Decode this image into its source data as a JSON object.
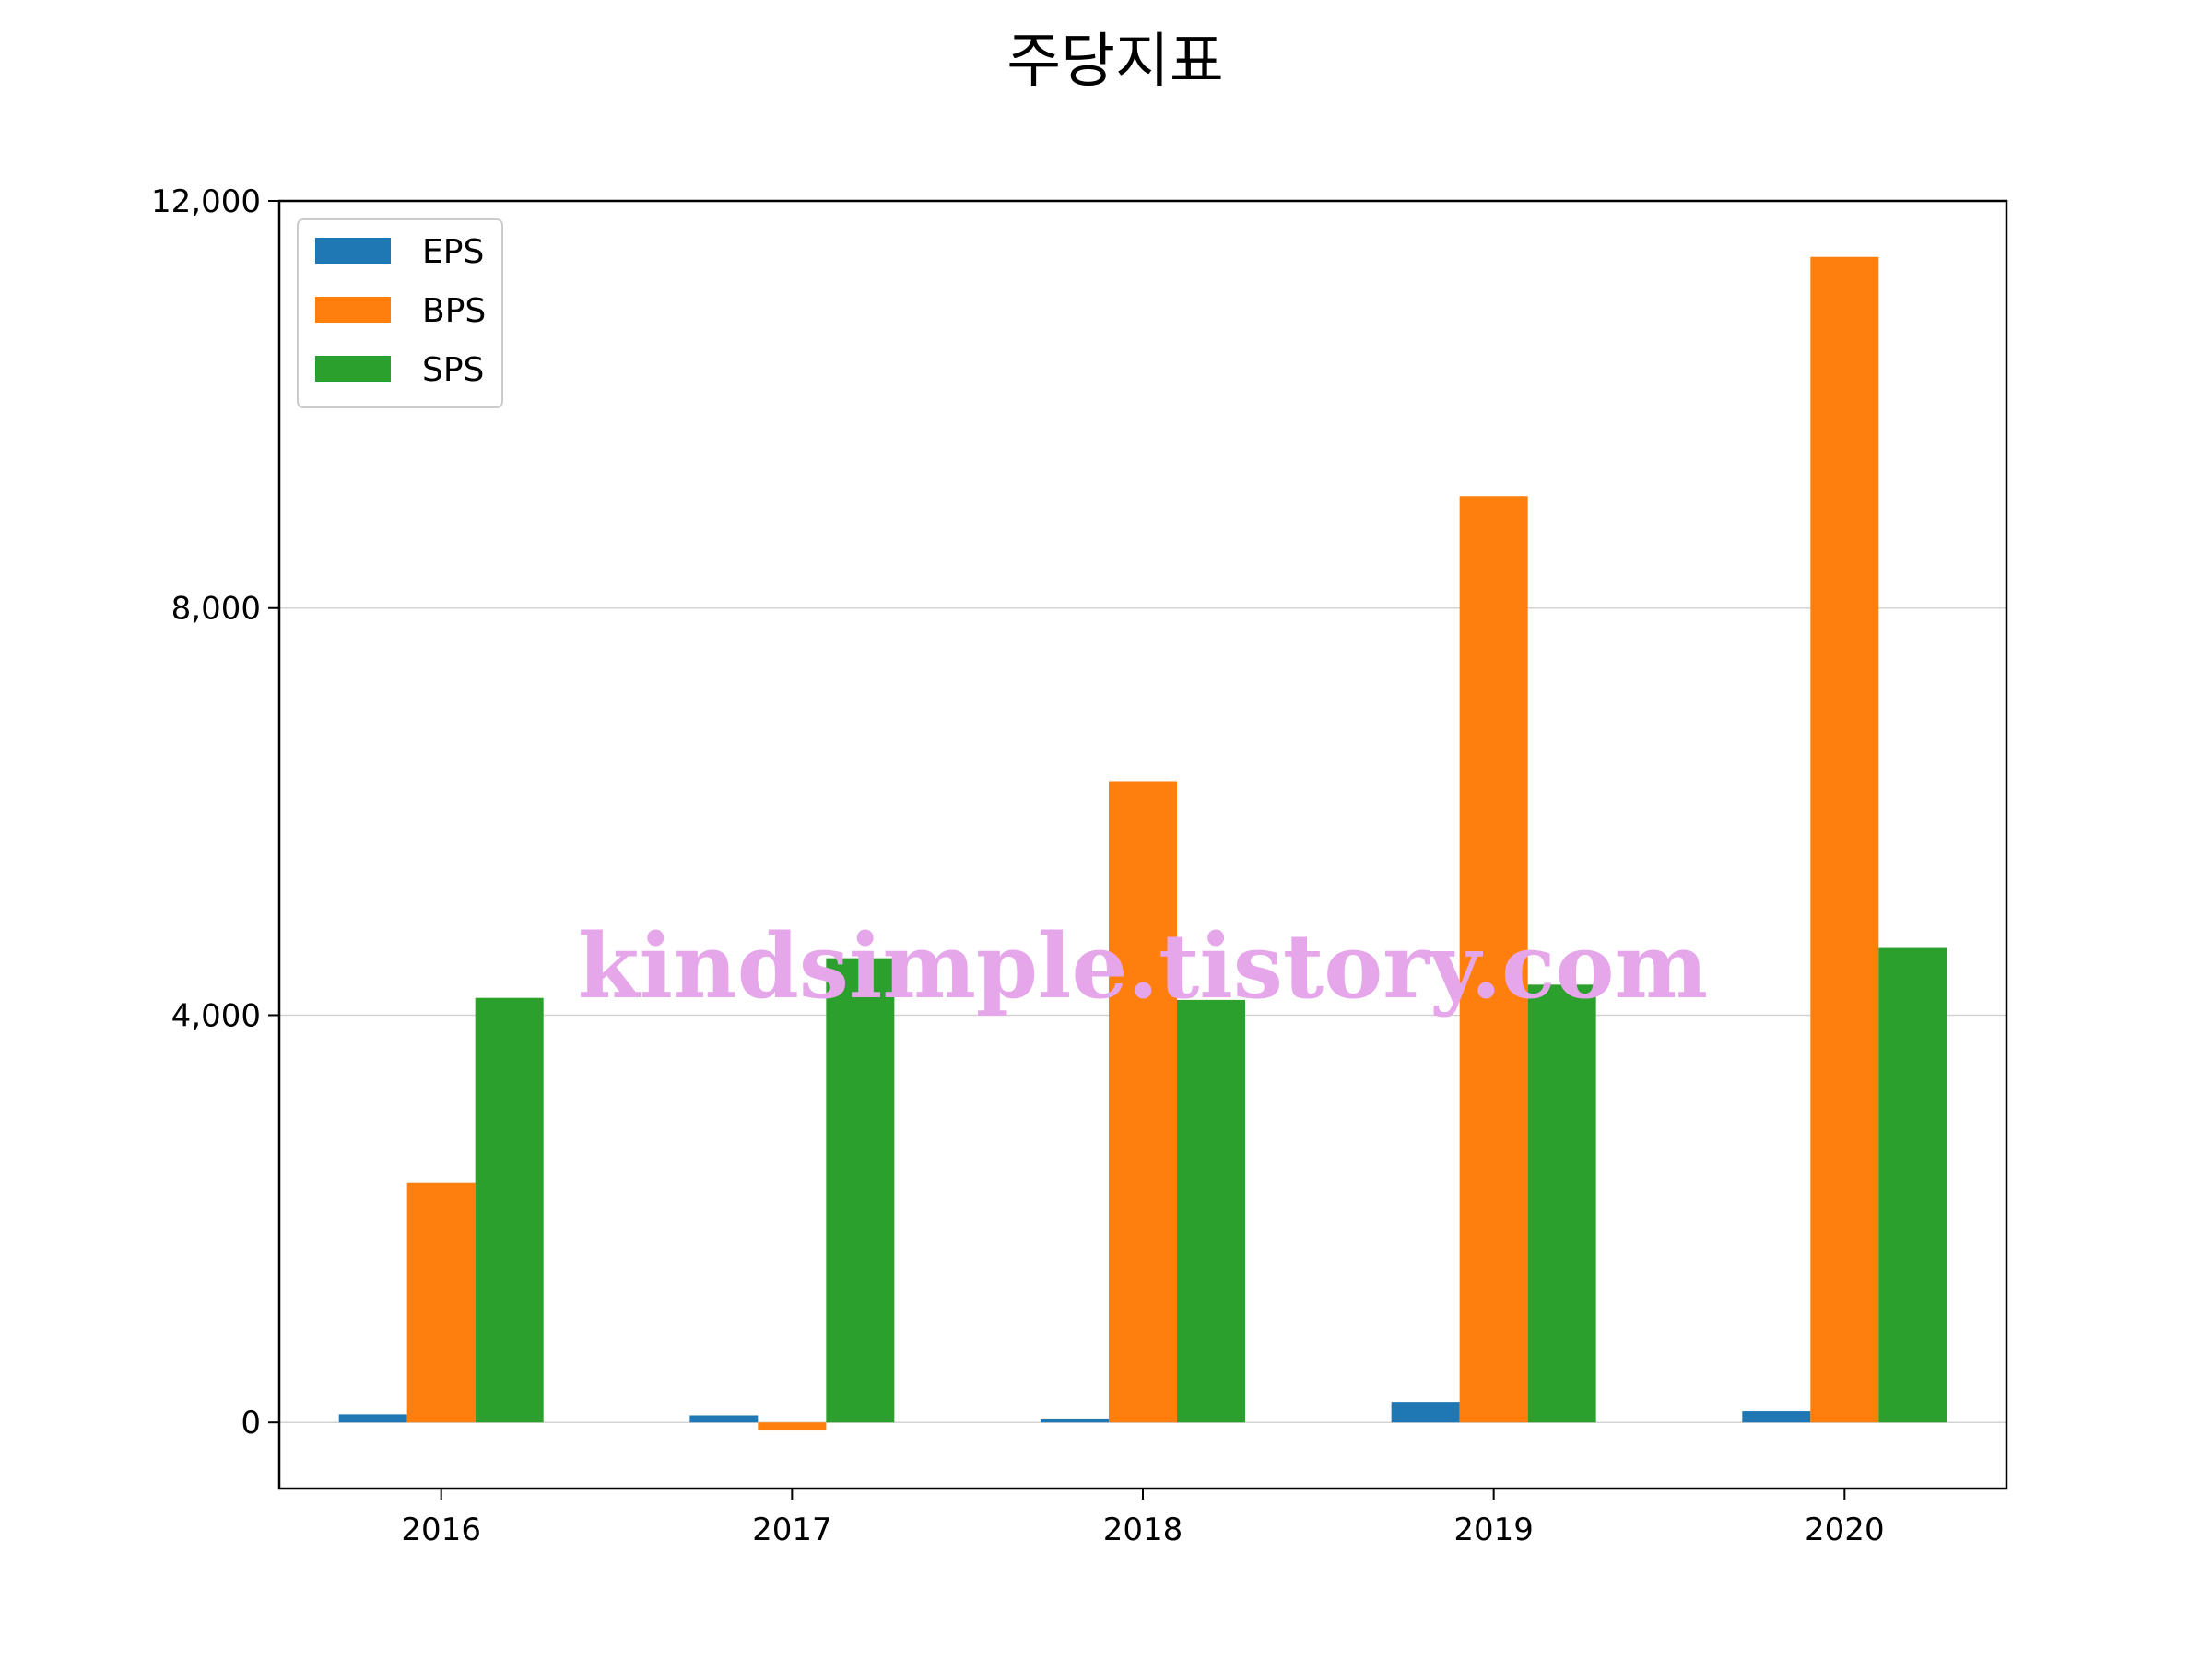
{
  "chart_data": {
    "type": "bar",
    "title": "주당지표",
    "xlabel": "",
    "ylabel": "",
    "categories": [
      "2016",
      "2017",
      "2018",
      "2019",
      "2020"
    ],
    "series": [
      {
        "name": "EPS",
        "color": "#1f77b4",
        "values": [
          80,
          70,
          30,
          200,
          110
        ]
      },
      {
        "name": "BPS",
        "color": "#ff7f0e",
        "values": [
          2350,
          -80,
          6300,
          9100,
          11450
        ]
      },
      {
        "name": "SPS",
        "color": "#2ca02c",
        "values": [
          4170,
          4560,
          4150,
          4300,
          4660
        ]
      }
    ],
    "ylim": [
      -650,
      12000
    ],
    "yticks": [
      0,
      4000,
      8000,
      12000
    ],
    "ytick_labels": [
      "0",
      "4,000",
      "8,000",
      "12,000"
    ],
    "grid": "y",
    "legend": "top-left"
  },
  "watermark": {
    "text": "kindsimple.tistory.com",
    "color": "#e6a6ea"
  }
}
